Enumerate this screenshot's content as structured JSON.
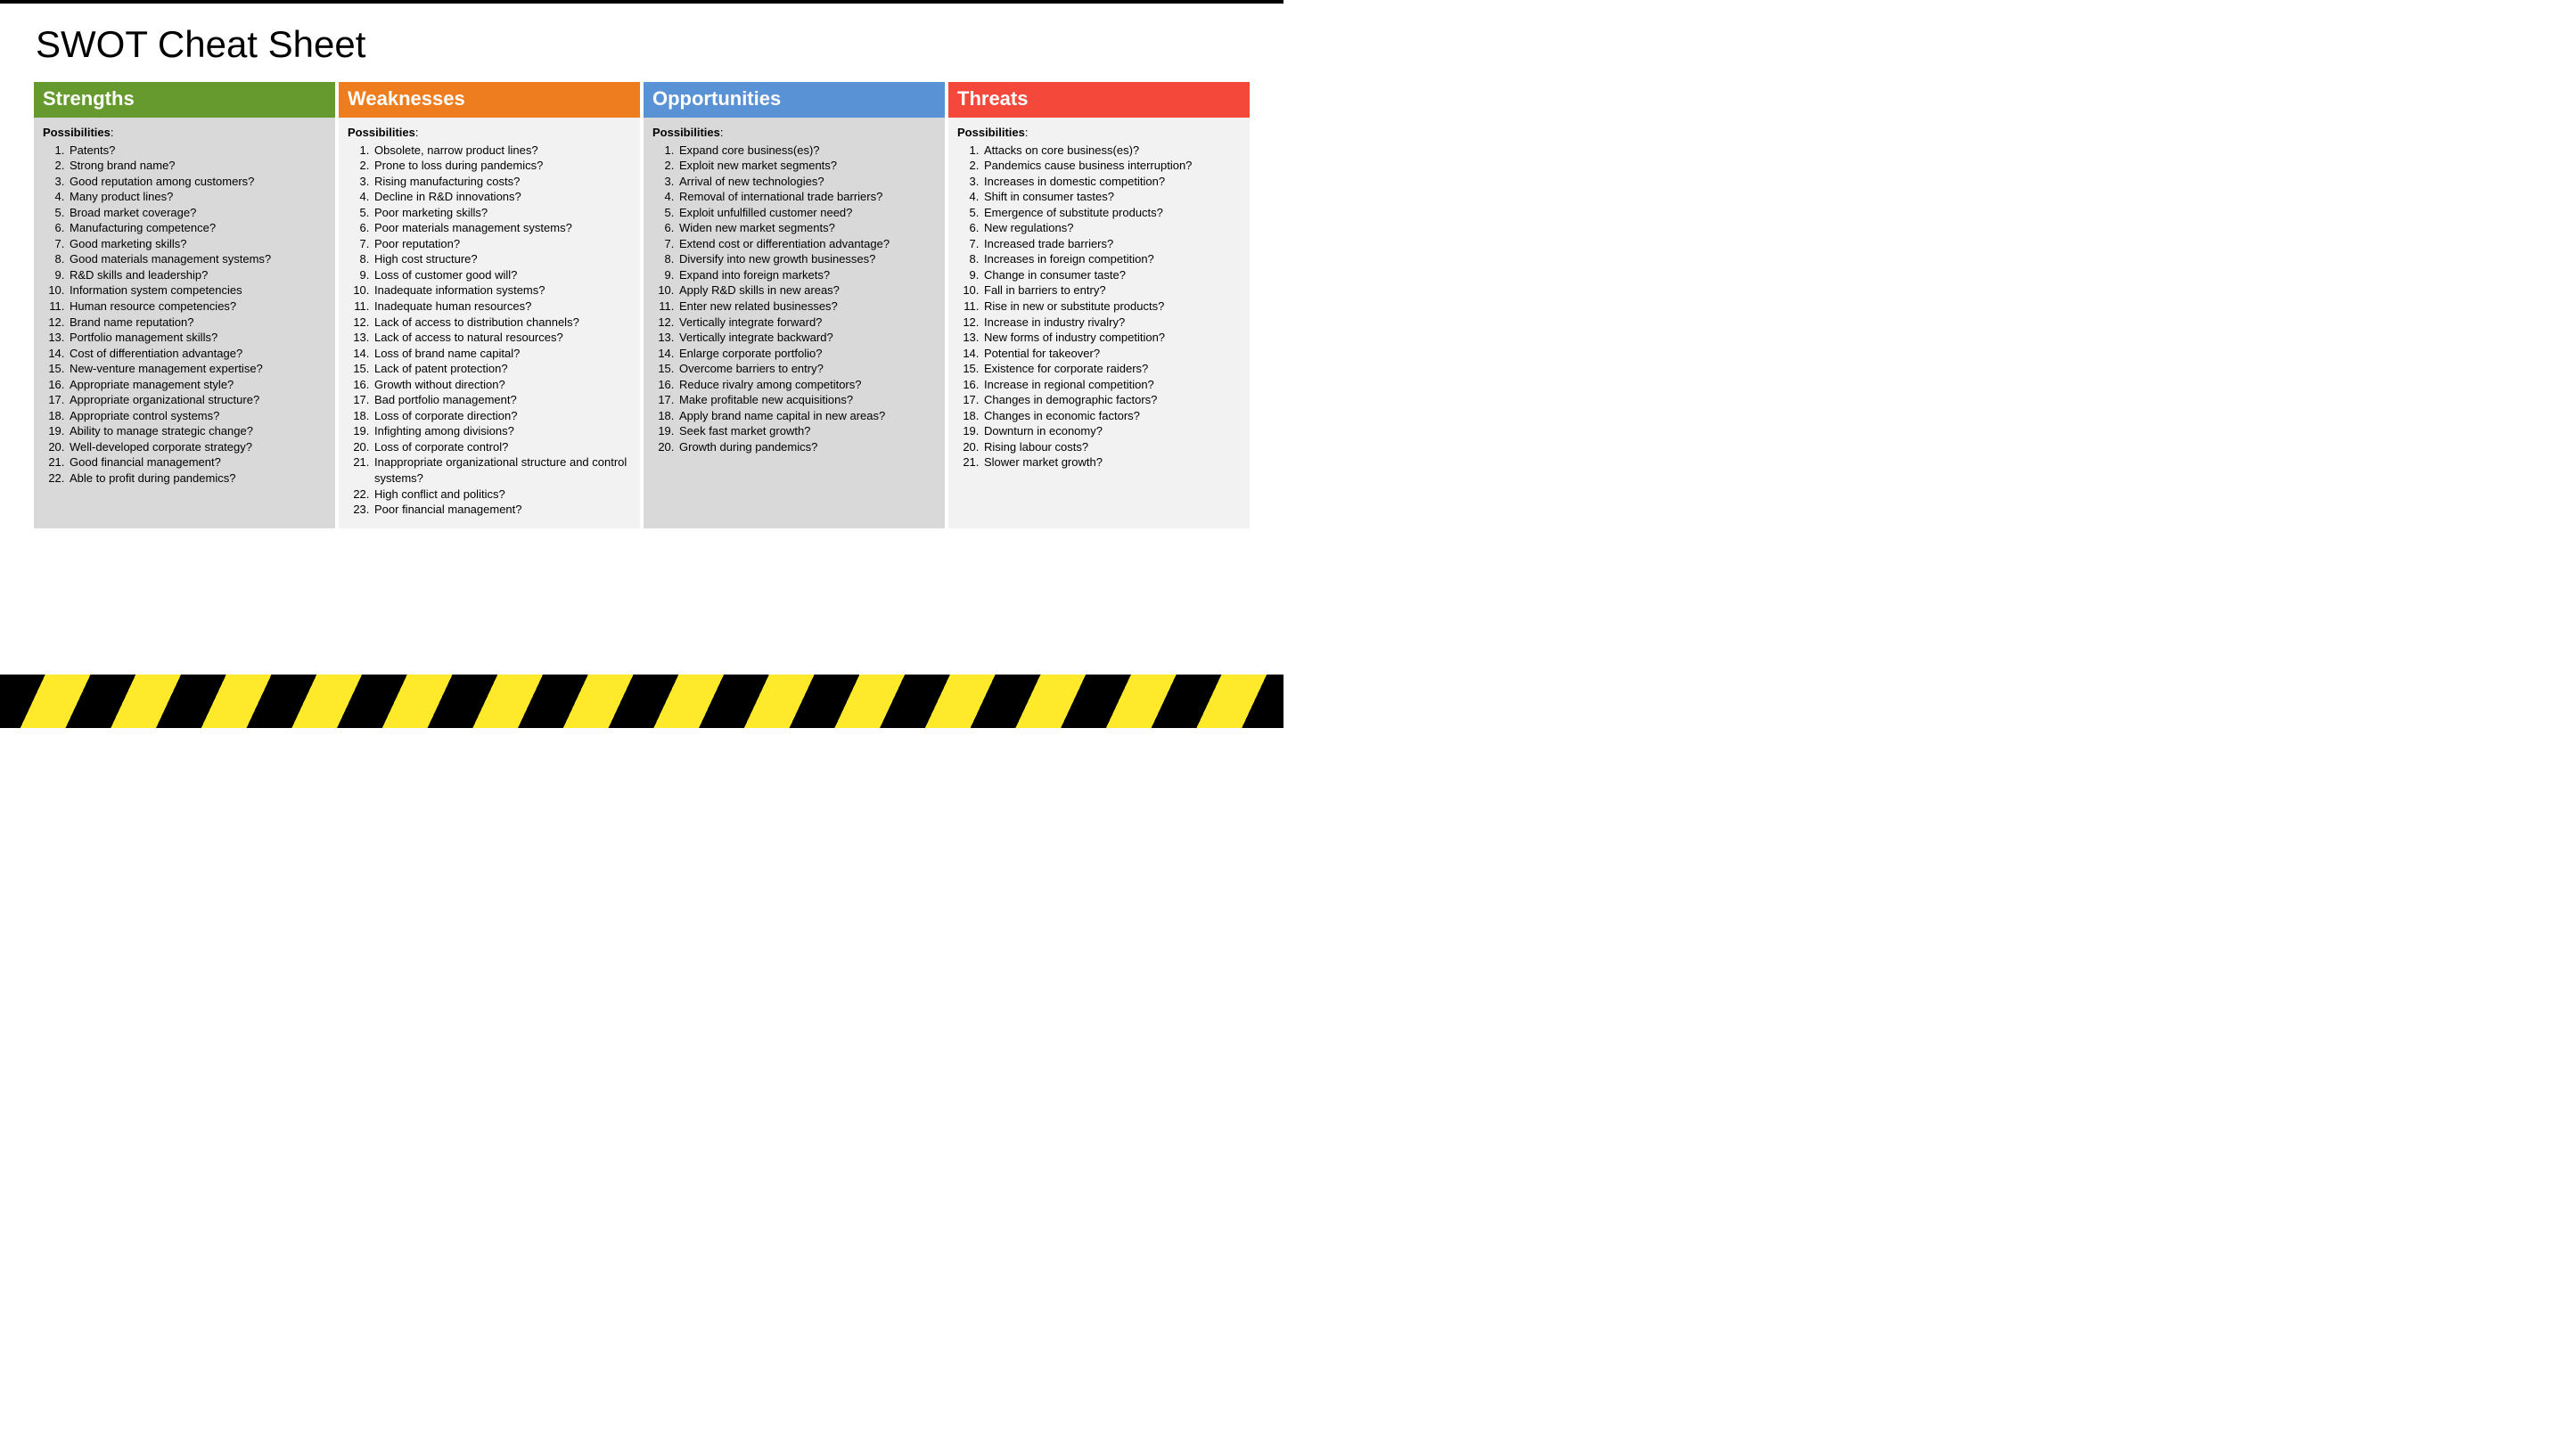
{
  "title": "SWOT Cheat Sheet",
  "subheading": "Possibilities",
  "colors": {
    "strengths": "#669a2e",
    "weaknesses": "#ed7d1f",
    "opportunities": "#5a92d6",
    "threats": "#f4483a",
    "body_odd": "#d9d9d9",
    "body_even": "#f2f2f2",
    "hazard_yellow": "#ffe92b",
    "hazard_black": "#000000"
  },
  "columns": [
    {
      "key": "strengths",
      "label": "Strengths",
      "items": [
        "Patents?",
        "Strong brand name?",
        "Good reputation among customers?",
        "Many product lines?",
        "Broad market coverage?",
        "Manufacturing competence?",
        "Good marketing skills?",
        "Good materials management systems?",
        "R&D skills and leadership?",
        "Information system competencies",
        "Human resource competencies?",
        "Brand name reputation?",
        "Portfolio management skills?",
        "Cost of differentiation advantage?",
        "New-venture management expertise?",
        "Appropriate management style?",
        "Appropriate organizational structure?",
        "Appropriate control systems?",
        "Ability to manage strategic change?",
        "Well-developed corporate strategy?",
        "Good financial management?",
        "Able to profit during pandemics?"
      ]
    },
    {
      "key": "weaknesses",
      "label": "Weaknesses",
      "items": [
        "Obsolete, narrow product lines?",
        "Prone to loss during pandemics?",
        "Rising manufacturing costs?",
        "Decline in R&D innovations?",
        "Poor marketing skills?",
        "Poor materials management systems?",
        "Poor reputation?",
        "High cost structure?",
        "Loss of customer good will?",
        "Inadequate information systems?",
        "Inadequate human resources?",
        "Lack of access to distribution channels?",
        "Lack of access to natural resources?",
        "Loss of brand name capital?",
        "Lack of patent protection?",
        "Growth without direction?",
        "Bad portfolio management?",
        "Loss of corporate direction?",
        "Infighting among divisions?",
        "Loss of corporate control?",
        "Inappropriate organizational structure and control systems?",
        "High conflict and politics?",
        "Poor financial management?"
      ]
    },
    {
      "key": "opportunities",
      "label": "Opportunities",
      "items": [
        "Expand core business(es)?",
        "Exploit new market segments?",
        "Arrival of new technologies?",
        "Removal of international trade barriers?",
        "Exploit unfulfilled customer need?",
        "Widen new market segments?",
        "Extend cost or differentiation advantage?",
        "Diversify into new growth businesses?",
        "Expand into foreign markets?",
        "Apply R&D skills in new areas?",
        "Enter new related businesses?",
        "Vertically integrate forward?",
        "Vertically integrate backward?",
        "Enlarge corporate portfolio?",
        "Overcome barriers to entry?",
        "Reduce rivalry among competitors?",
        "Make profitable new acquisitions?",
        "Apply brand name capital in new areas?",
        "Seek fast market growth?",
        "Growth during pandemics?"
      ]
    },
    {
      "key": "threats",
      "label": "Threats",
      "items": [
        "Attacks on core business(es)?",
        "Pandemics cause business interruption?",
        "Increases in domestic competition?",
        "Shift in consumer tastes?",
        "Emergence of substitute products?",
        "New regulations?",
        "Increased trade barriers?",
        "Increases in foreign competition?",
        "Change in consumer taste?",
        "Fall in barriers to entry?",
        "Rise in new or substitute products?",
        "Increase in industry rivalry?",
        "New forms of industry competition?",
        "Potential for takeover?",
        "Existence for corporate raiders?",
        "Increase in regional competition?",
        "Changes in demographic factors?",
        "Changes in economic factors?",
        "Downturn in economy?",
        "Rising labour costs?",
        "Slower market growth?"
      ]
    }
  ]
}
